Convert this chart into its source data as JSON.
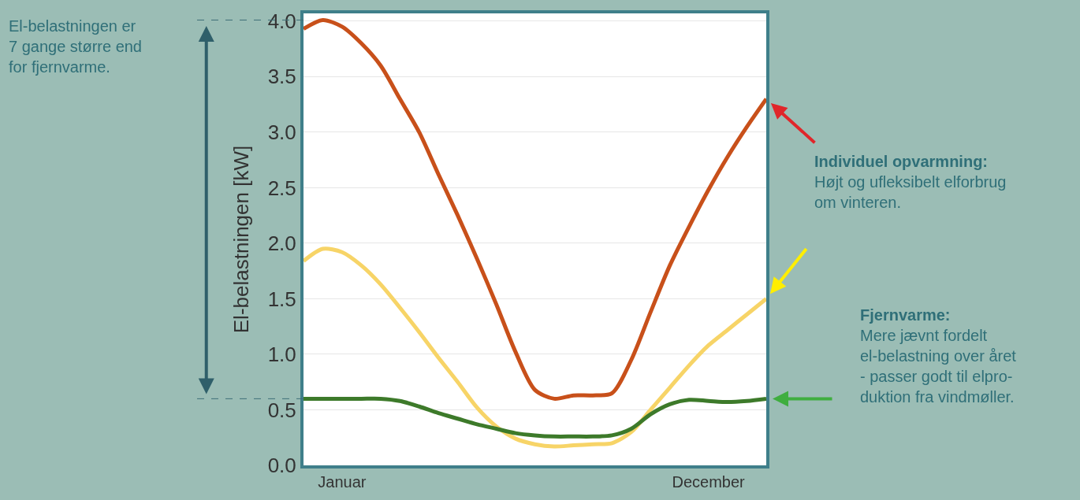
{
  "chart_data": {
    "type": "line",
    "ylabel": "El-belastningen [kW]",
    "categories": [
      null,
      null,
      "Januar",
      null,
      null,
      null,
      null,
      null,
      null,
      null,
      null,
      null,
      null,
      null,
      null,
      null,
      null,
      null,
      null,
      null,
      null,
      "December",
      null,
      null,
      null
    ],
    "ylim": [
      0,
      4.07
    ],
    "yticks": [
      {
        "value": 0,
        "label": "0.0"
      },
      0.5,
      {
        "value": 1,
        "label": "1.0"
      },
      1.5,
      {
        "value": 2,
        "label": "2.0"
      },
      2.5,
      {
        "value": 3,
        "label": "3.0"
      },
      3.5,
      {
        "value": 4,
        "label": "4.0"
      }
    ],
    "grid": "y",
    "marker": "none",
    "line_style": "solid",
    "series": [
      {
        "color": "#c8501a",
        "values": [
          3.93,
          4.01,
          3.95,
          3.8,
          3.6,
          3.3,
          3.0,
          2.62,
          2.25,
          1.86,
          1.45,
          1.02,
          0.68,
          0.6,
          0.63,
          0.63,
          0.65,
          0.95,
          1.38,
          1.8,
          2.15,
          2.48,
          2.78,
          3.05,
          3.3
        ]
      },
      {
        "color": "#f7d467",
        "values": [
          1.84,
          1.95,
          1.92,
          1.8,
          1.63,
          1.42,
          1.2,
          0.97,
          0.75,
          0.52,
          0.35,
          0.24,
          0.19,
          0.17,
          0.18,
          0.19,
          0.2,
          0.3,
          0.5,
          0.7,
          0.9,
          1.08,
          1.22,
          1.36,
          1.5
        ]
      },
      {
        "color": "#3d7a2a",
        "values": [
          0.6,
          0.6,
          0.6,
          0.6,
          0.6,
          0.58,
          0.53,
          0.47,
          0.42,
          0.37,
          0.33,
          0.29,
          0.27,
          0.26,
          0.26,
          0.26,
          0.27,
          0.33,
          0.46,
          0.55,
          0.59,
          0.58,
          0.57,
          0.58,
          0.6
        ]
      }
    ],
    "annotations": [
      "El-belastningen er\n7 gange større end\nfor fjernvarme.",
      "**Individuel opvarmning:**\nHøjt og ufleksibelt elforbrug\nom vinteren.",
      "**Fjernvarme:**\nMere jævnt fordelt\nel-belastning over året\n- passer godt til elpro-\nduktion fra vindmøller."
    ]
  }
}
